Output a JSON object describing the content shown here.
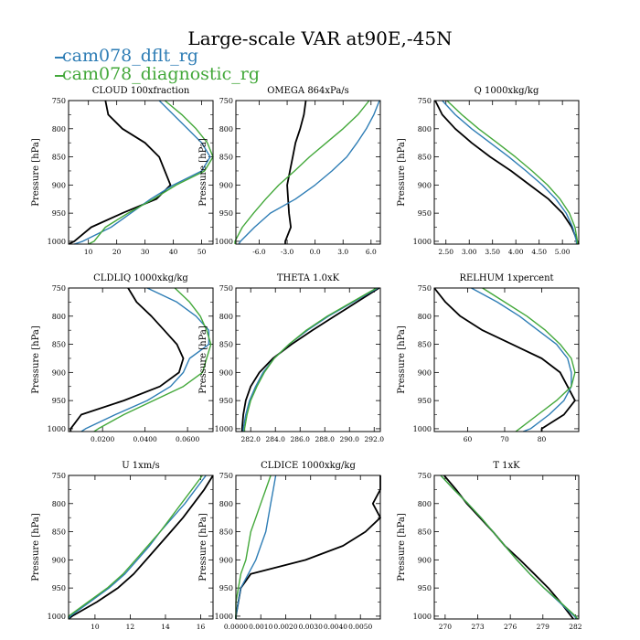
{
  "title": "Large-scale VAR at90E,-45N",
  "legend": [
    {
      "name": "cam078_dflt_rg",
      "color": "#2e7db5"
    },
    {
      "name": "cam078_diagnostic_rg",
      "color": "#43a83a"
    }
  ],
  "colors": {
    "control": "#000000",
    "dflt": "#2e7db5",
    "diagnostic": "#43a83a"
  },
  "chart_data": [
    {
      "type": "line",
      "title": "CLOUD  100xfraction",
      "ylabel": "Pressure [hPa]",
      "ylim": [
        1005,
        750
      ],
      "xlim": [
        3,
        54
      ],
      "xticks": [
        10,
        20,
        30,
        40,
        50
      ],
      "xtick_labels": [
        "10",
        "20",
        "30",
        "40",
        "50"
      ],
      "y": [
        750,
        775,
        800,
        825,
        850,
        875,
        900,
        925,
        950,
        975,
        1000,
        1005
      ],
      "series": [
        {
          "name": "",
          "values": [
            16,
            17,
            22,
            30,
            35,
            37,
            39,
            34,
            22,
            11,
            5,
            3
          ]
        },
        {
          "name": "cam078_dflt_rg",
          "values": [
            35,
            40,
            45,
            50,
            53,
            50,
            40,
            32,
            25,
            18,
            8,
            5
          ]
        },
        {
          "name": "cam078_diagnostic_rg",
          "values": [
            37,
            43,
            48,
            52,
            54,
            51,
            41,
            33,
            24,
            16,
            12,
            10
          ]
        }
      ]
    },
    {
      "type": "line",
      "title": "OMEGA  864xPa/s",
      "ylabel": "Pressure [hPa]",
      "ylim": [
        1005,
        750
      ],
      "xlim": [
        -8.5,
        7
      ],
      "xticks": [
        -6,
        -3,
        0,
        3,
        6
      ],
      "xtick_labels": [
        "-6.0",
        "-3.0",
        "0.0",
        "3.0",
        "6.0"
      ],
      "y": [
        750,
        775,
        800,
        825,
        850,
        875,
        900,
        925,
        950,
        975,
        1000,
        1005
      ],
      "series": [
        {
          "name": "",
          "values": [
            -1.0,
            -1.2,
            -1.6,
            -2.1,
            -2.4,
            -2.7,
            -3.0,
            -2.9,
            -2.8,
            -2.6,
            -3.2,
            -3.2
          ]
        },
        {
          "name": "cam078_dflt_rg",
          "values": [
            6.9,
            6.3,
            5.5,
            4.5,
            3.4,
            1.8,
            0.0,
            -2.1,
            -4.8,
            -6.5,
            -8.0,
            -8.2
          ]
        },
        {
          "name": "cam078_diagnostic_rg",
          "values": [
            5.8,
            4.6,
            3.0,
            1.2,
            -0.6,
            -2.2,
            -3.9,
            -5.3,
            -6.6,
            -7.8,
            -8.6,
            -8.6
          ]
        }
      ]
    },
    {
      "type": "line",
      "title": "Q  1000xkg/kg",
      "ylabel": "Pressure [hPa]",
      "ylim": [
        1005,
        750
      ],
      "xlim": [
        2.25,
        5.35
      ],
      "xticks": [
        2.5,
        3.0,
        3.5,
        4.0,
        4.5,
        5.0
      ],
      "xtick_labels": [
        "2.50",
        "3.00",
        "3.50",
        "4.00",
        "4.50",
        "5.00"
      ],
      "y": [
        750,
        775,
        800,
        825,
        850,
        875,
        900,
        925,
        950,
        975,
        1000,
        1005
      ],
      "series": [
        {
          "name": "",
          "values": [
            2.27,
            2.42,
            2.7,
            3.05,
            3.45,
            3.9,
            4.3,
            4.7,
            5.0,
            5.2,
            5.32,
            5.35
          ]
        },
        {
          "name": "cam078_dflt_rg",
          "values": [
            2.42,
            2.7,
            3.05,
            3.45,
            3.85,
            4.22,
            4.57,
            4.86,
            5.08,
            5.22,
            5.3,
            5.3
          ]
        },
        {
          "name": "cam078_diagnostic_rg",
          "values": [
            2.52,
            2.84,
            3.2,
            3.6,
            3.99,
            4.35,
            4.68,
            4.95,
            5.15,
            5.27,
            5.32,
            5.32
          ]
        }
      ]
    },
    {
      "type": "line",
      "title": "CLDLIQ  1000xkg/kg",
      "ylabel": "Pressure [hPa]",
      "ylim": [
        1005,
        750
      ],
      "xlim": [
        0.004,
        0.072
      ],
      "xticks": [
        0.02,
        0.04,
        0.06
      ],
      "xtick_labels": [
        "0.0200",
        "0.0400",
        "0.0600"
      ],
      "y": [
        750,
        775,
        800,
        825,
        850,
        875,
        900,
        925,
        950,
        975,
        1000,
        1005
      ],
      "series": [
        {
          "name": "",
          "values": [
            0.032,
            0.036,
            0.043,
            0.049,
            0.055,
            0.058,
            0.056,
            0.047,
            0.03,
            0.01,
            0.005,
            0.005
          ]
        },
        {
          "name": "cam078_dflt_rg",
          "values": [
            0.041,
            0.055,
            0.064,
            0.07,
            0.07,
            0.061,
            0.058,
            0.052,
            0.041,
            0.026,
            0.012,
            0.01
          ]
        },
        {
          "name": "cam078_diagnostic_rg",
          "values": [
            0.054,
            0.061,
            0.066,
            0.069,
            0.071,
            0.069,
            0.067,
            0.058,
            0.044,
            0.03,
            0.018,
            0.016
          ]
        }
      ]
    },
    {
      "type": "line",
      "title": "THETA  1.0xK",
      "ylabel": "Pressure [hPa]",
      "ylim": [
        1005,
        750
      ],
      "xlim": [
        280.8,
        292.5
      ],
      "xticks": [
        282,
        284,
        286,
        288,
        290,
        292
      ],
      "xtick_labels": [
        "282.0",
        "284.0",
        "286.0",
        "288.0",
        "290.0",
        "292.0"
      ],
      "y": [
        750,
        775,
        800,
        825,
        850,
        875,
        900,
        925,
        950,
        975,
        1000,
        1005
      ],
      "series": [
        {
          "name": "",
          "values": [
            292.4,
            290.6,
            288.8,
            287.0,
            285.3,
            283.8,
            282.7,
            282.0,
            281.6,
            281.4,
            281.3,
            281.3
          ]
        },
        {
          "name": "cam078_dflt_rg",
          "values": [
            292.3,
            290.3,
            288.3,
            286.6,
            285.1,
            283.9,
            283.0,
            282.4,
            281.9,
            281.6,
            281.4,
            281.4
          ]
        },
        {
          "name": "cam078_diagnostic_rg",
          "values": [
            292.2,
            290.2,
            288.2,
            286.5,
            285.1,
            283.9,
            283.1,
            282.5,
            282.0,
            281.7,
            281.5,
            281.5
          ]
        }
      ]
    },
    {
      "type": "line",
      "title": "RELHUM  1xpercent",
      "ylabel": "Pressure [hPa]",
      "ylim": [
        1005,
        750
      ],
      "xlim": [
        51,
        90
      ],
      "xticks": [
        60,
        70,
        80
      ],
      "xtick_labels": [
        "60",
        "70",
        "80"
      ],
      "y": [
        750,
        775,
        800,
        825,
        850,
        875,
        900,
        925,
        950,
        975,
        1000,
        1005
      ],
      "series": [
        {
          "name": "",
          "values": [
            51,
            54,
            58,
            64,
            72,
            80,
            85,
            87,
            89,
            86,
            80,
            80
          ]
        },
        {
          "name": "cam078_dflt_rg",
          "values": [
            61,
            68,
            74,
            79,
            84,
            87,
            88,
            88,
            86,
            82,
            77,
            75
          ]
        },
        {
          "name": "cam078_diagnostic_rg",
          "values": [
            64,
            70,
            76,
            81,
            85,
            88,
            89,
            88,
            84,
            79,
            74,
            73
          ]
        }
      ]
    },
    {
      "type": "line",
      "title": "U  1xm/s",
      "ylabel": "Pressure [hPa]",
      "ylim": [
        1005,
        750
      ],
      "xlim": [
        8.5,
        16.7
      ],
      "xticks": [
        10,
        12,
        14,
        16
      ],
      "xtick_labels": [
        "10",
        "12",
        "14",
        "16"
      ],
      "y": [
        750,
        775,
        800,
        825,
        850,
        875,
        900,
        925,
        950,
        975,
        1000,
        1005
      ],
      "series": [
        {
          "name": "",
          "values": [
            16.7,
            16.2,
            15.6,
            15.0,
            14.3,
            13.6,
            12.9,
            12.2,
            11.3,
            10.1,
            8.7,
            8.5
          ]
        },
        {
          "name": "cam078_dflt_rg",
          "values": [
            16.3,
            15.7,
            15.1,
            14.4,
            13.7,
            13.1,
            12.4,
            11.7,
            10.8,
            9.7,
            8.6,
            8.5
          ]
        },
        {
          "name": "cam078_diagnostic_rg",
          "values": [
            16.1,
            15.5,
            14.9,
            14.3,
            13.7,
            13.0,
            12.3,
            11.6,
            10.7,
            9.6,
            8.5,
            8.5
          ]
        }
      ]
    },
    {
      "type": "line",
      "title": "CLDICE  1000xkg/kg",
      "ylabel": "Pressure [hPa]",
      "ylim": [
        1005,
        750
      ],
      "xlim": [
        0.0,
        0.0058
      ],
      "xticks": [
        0.0,
        0.001,
        0.002,
        0.003,
        0.004,
        0.005
      ],
      "xtick_labels": [
        "0.0000",
        "0.0010",
        "0.0020",
        "0.0030",
        "0.0040",
        "0.0050"
      ],
      "y": [
        750,
        775,
        800,
        825,
        850,
        875,
        900,
        925,
        950,
        975,
        1000,
        1005
      ],
      "series": [
        {
          "name": "",
          "values": [
            0.0058,
            0.0058,
            0.0055,
            0.0058,
            0.0052,
            0.0043,
            0.0028,
            0.0006,
            0.0002,
            0.0001,
            0.0,
            0.0
          ]
        },
        {
          "name": "cam078_dflt_rg",
          "values": [
            0.0016,
            0.0015,
            0.0014,
            0.0013,
            0.0012,
            0.001,
            0.0008,
            0.0005,
            0.0002,
            0.0001,
            0.0,
            0.0
          ]
        },
        {
          "name": "cam078_diagnostic_rg",
          "values": [
            0.0014,
            0.0012,
            0.001,
            0.0008,
            0.0006,
            0.0005,
            0.0004,
            0.0002,
            0.0001,
            0.0,
            0.0,
            0.0
          ]
        }
      ]
    },
    {
      "type": "line",
      "title": "T  1xK",
      "ylabel": "Pressure [hPa]",
      "ylim": [
        1005,
        750
      ],
      "xlim": [
        269,
        282.3
      ],
      "xticks": [
        270,
        273,
        276,
        279,
        282
      ],
      "xtick_labels": [
        "270",
        "273",
        "276",
        "279",
        "282"
      ],
      "y": [
        750,
        775,
        800,
        825,
        850,
        875,
        900,
        925,
        950,
        975,
        1000,
        1005
      ],
      "series": [
        {
          "name": "",
          "values": [
            269.9,
            271.0,
            272.0,
            273.2,
            274.4,
            275.5,
            276.9,
            278.2,
            279.5,
            280.6,
            281.6,
            281.8
          ]
        },
        {
          "name": "cam078_dflt_rg",
          "values": [
            269.6,
            270.8,
            272.1,
            273.3,
            274.4,
            275.5,
            276.6,
            277.8,
            279.1,
            280.5,
            281.9,
            282.1
          ]
        },
        {
          "name": "cam078_diagnostic_rg",
          "values": [
            269.6,
            270.8,
            272.1,
            273.3,
            274.4,
            275.5,
            276.6,
            277.8,
            279.1,
            280.6,
            282.0,
            282.2
          ]
        }
      ]
    }
  ]
}
